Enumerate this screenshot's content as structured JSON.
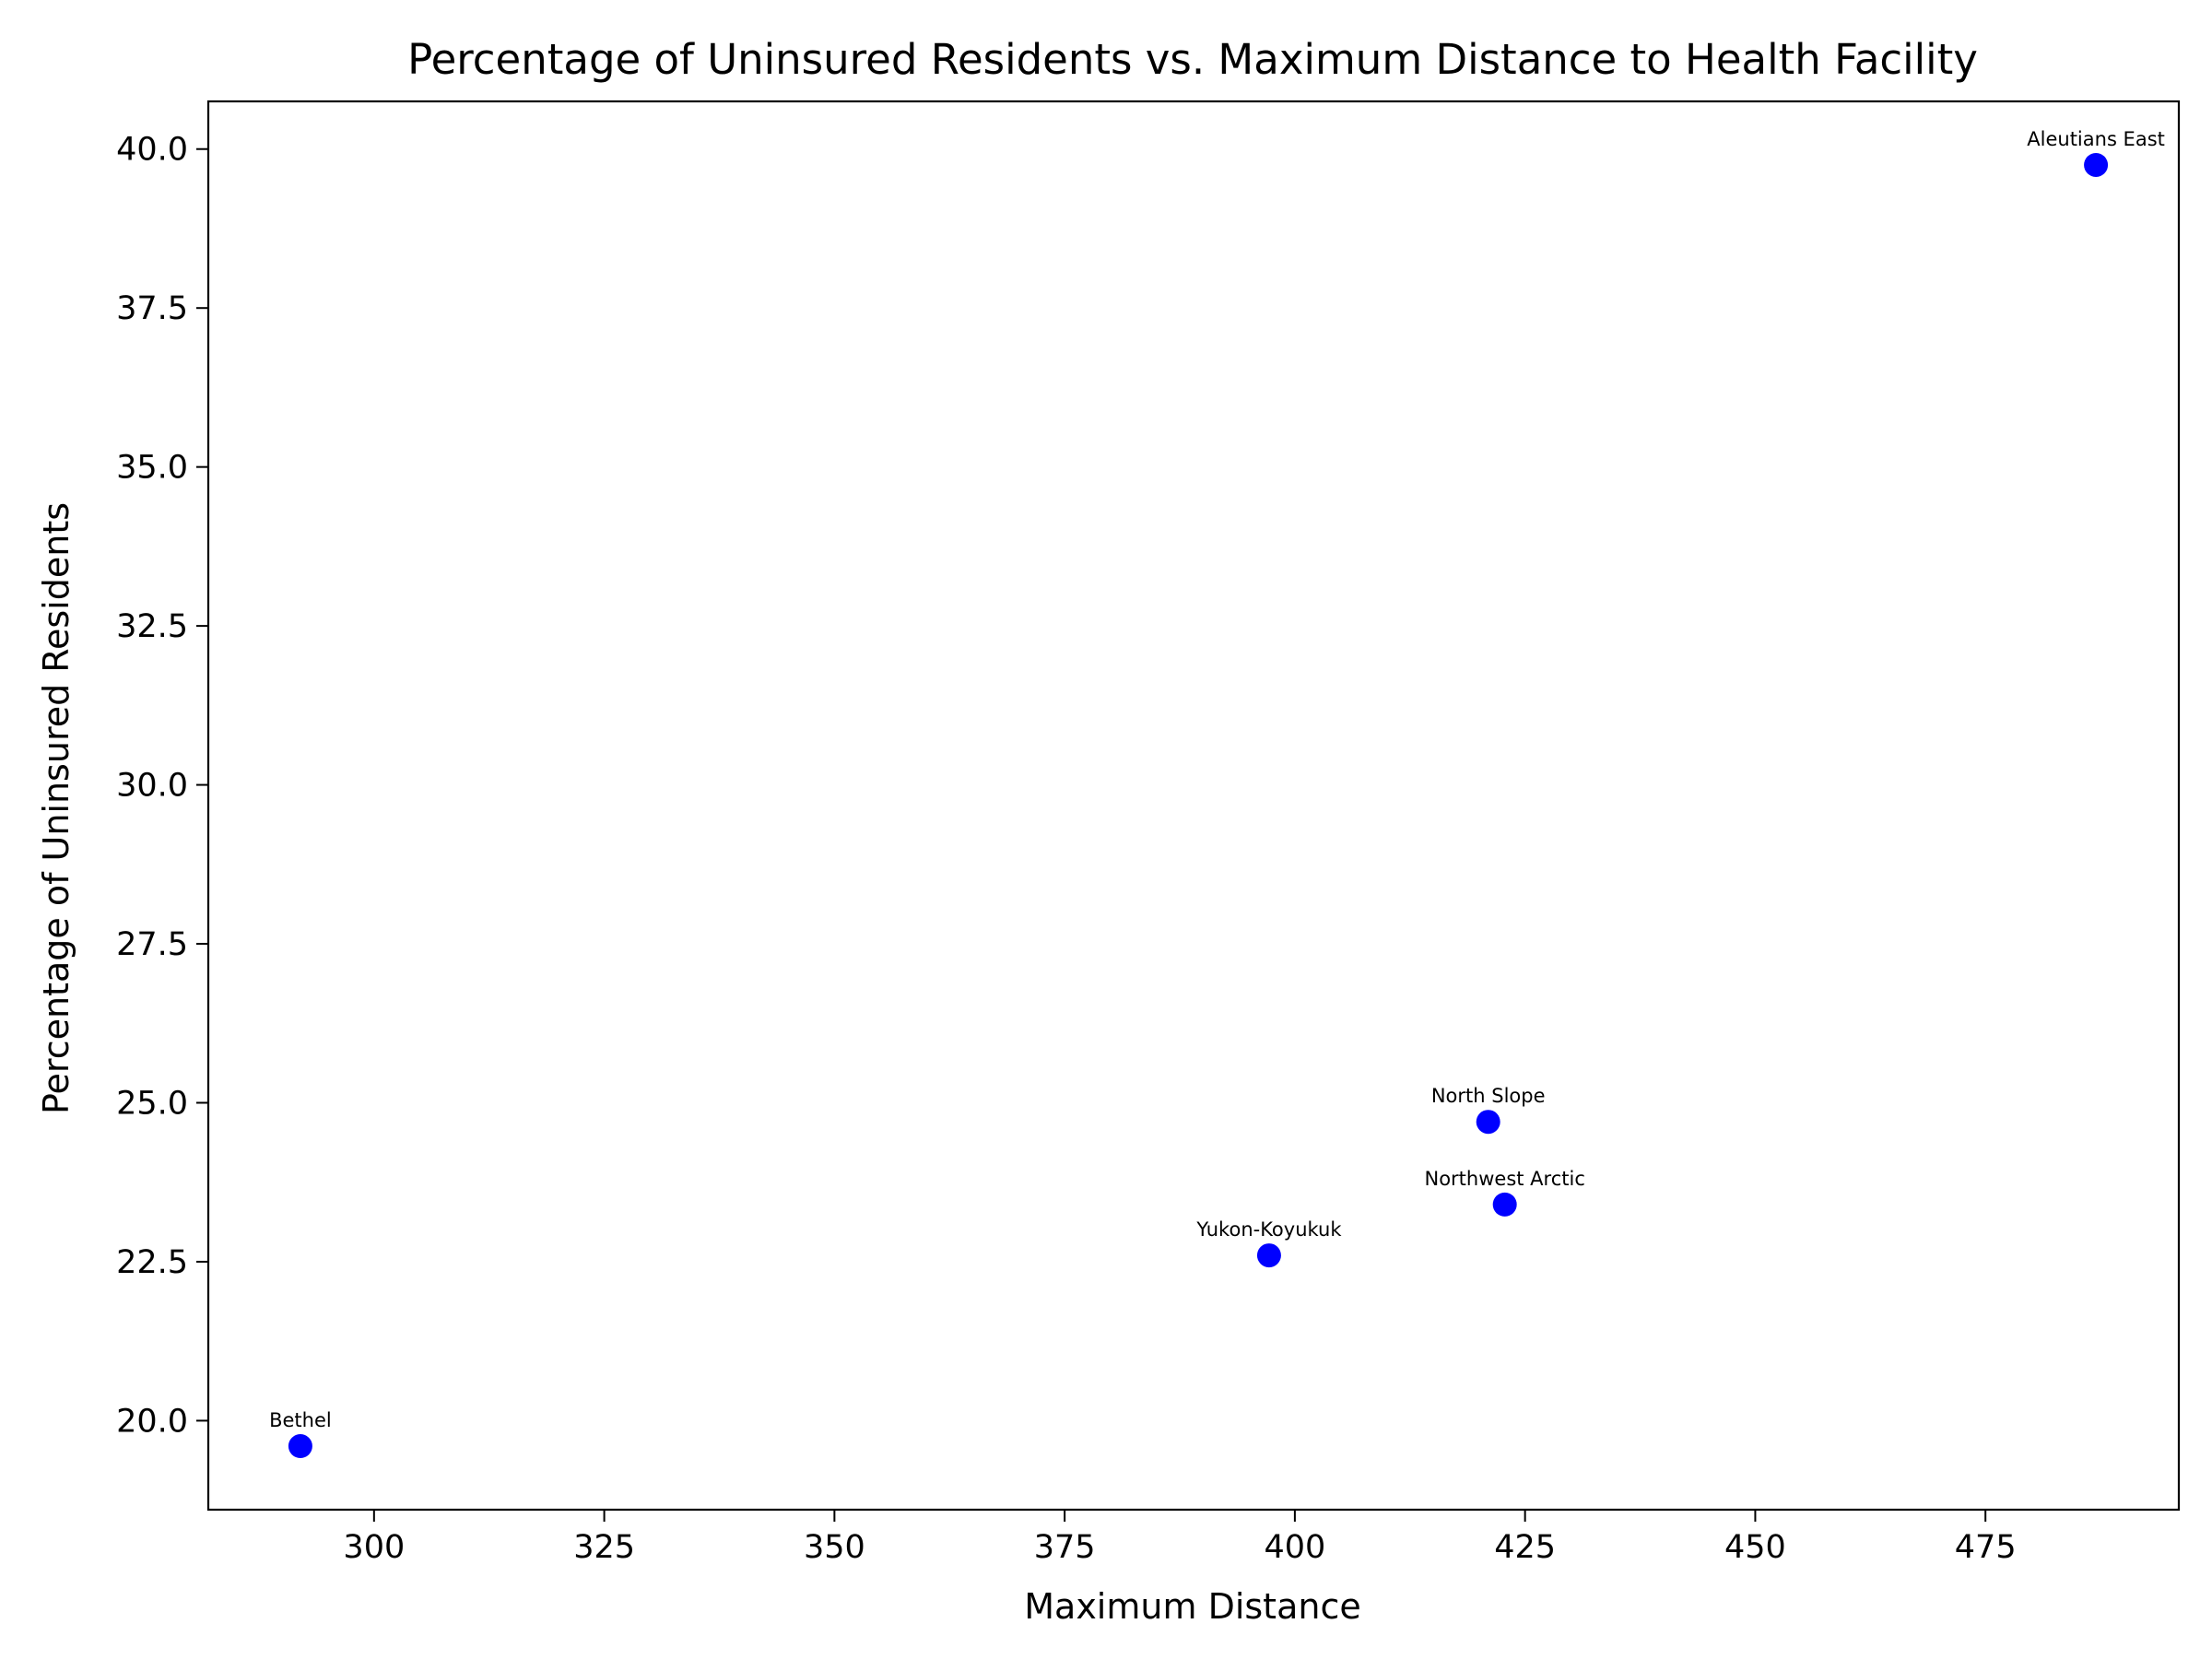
{
  "chart_data": {
    "type": "scatter",
    "title": "Percentage of Uninsured Residents vs. Maximum Distance to Health Facility",
    "xlabel": "Maximum Distance",
    "ylabel": "Percentage of Uninsured Residents",
    "xlim": [
      282,
      496
    ],
    "ylim": [
      18.6,
      40.75
    ],
    "xticks": [
      300,
      325,
      350,
      375,
      400,
      425,
      450,
      475
    ],
    "xtick_labels": [
      "300",
      "325",
      "350",
      "375",
      "400",
      "425",
      "450",
      "475"
    ],
    "yticks": [
      20.0,
      22.5,
      25.0,
      27.5,
      30.0,
      32.5,
      35.0,
      37.5,
      40.0
    ],
    "ytick_labels": [
      "20.0",
      "22.5",
      "25.0",
      "27.5",
      "30.0",
      "32.5",
      "35.0",
      "37.5",
      "40.0"
    ],
    "grid": false,
    "marker_color": "#0000ff",
    "points": [
      {
        "label": "Bethel",
        "x": 292,
        "y": 19.6
      },
      {
        "label": "Yukon-Koyukuk",
        "x": 397.2,
        "y": 22.6
      },
      {
        "label": "North Slope",
        "x": 421,
        "y": 24.7
      },
      {
        "label": "Northwest Arctic",
        "x": 422.8,
        "y": 23.4
      },
      {
        "label": "Aleutians East",
        "x": 487,
        "y": 39.75
      }
    ]
  }
}
